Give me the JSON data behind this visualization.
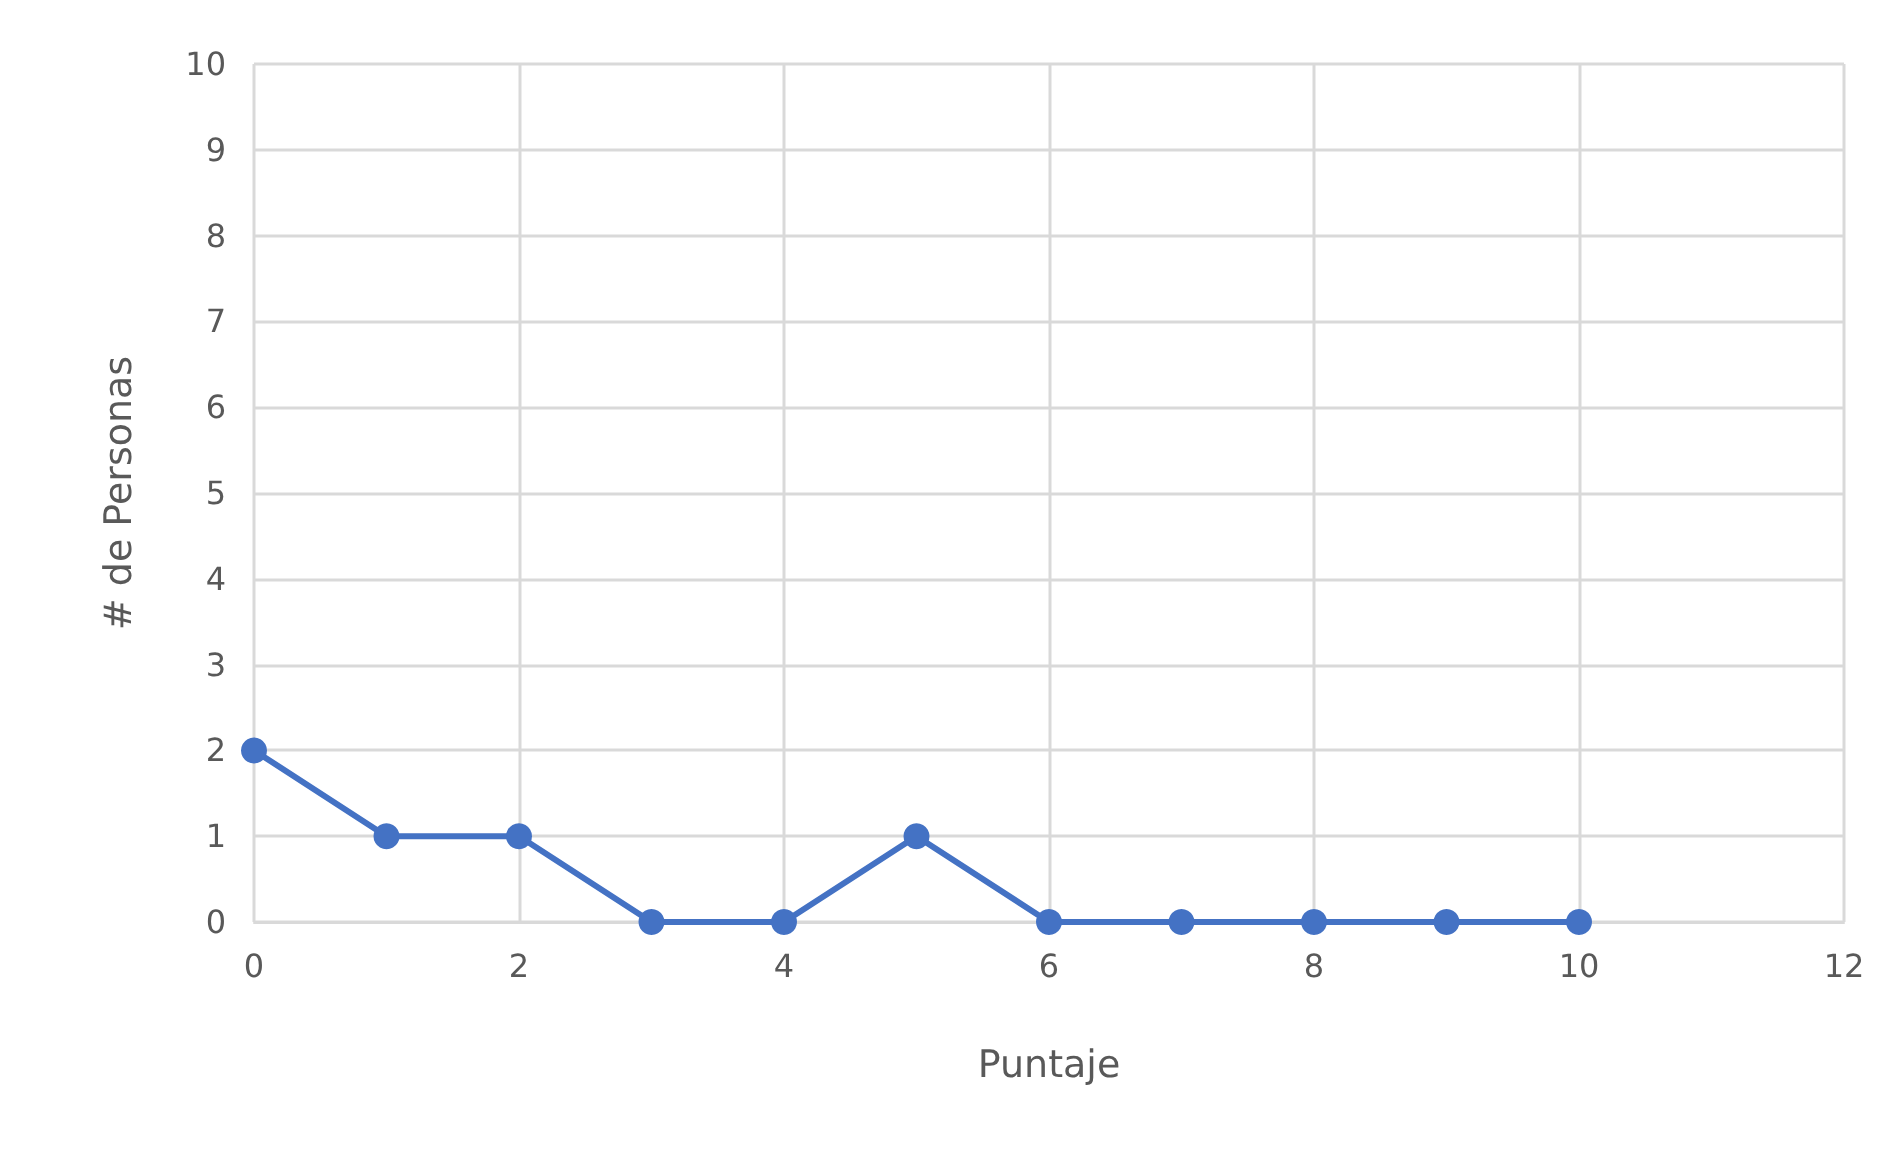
{
  "chart_data": {
    "type": "line",
    "xlabel": "Puntaje",
    "ylabel": "# de Personas",
    "x": [
      0,
      1,
      2,
      3,
      4,
      5,
      6,
      7,
      8,
      9,
      10
    ],
    "series": [
      {
        "color": "#4472c4",
        "values": [
          2,
          1,
          1,
          0,
          0,
          1,
          0,
          0,
          0,
          0,
          0
        ]
      }
    ],
    "xlim": [
      0,
      12
    ],
    "xticks": [
      0,
      2,
      4,
      6,
      8,
      10,
      12
    ],
    "ylim": [
      0,
      10
    ],
    "yticks": [
      0,
      1,
      2,
      3,
      4,
      5,
      6,
      7,
      8,
      9,
      10
    ],
    "grid": true,
    "marker": "circle",
    "line_style": "solid"
  }
}
